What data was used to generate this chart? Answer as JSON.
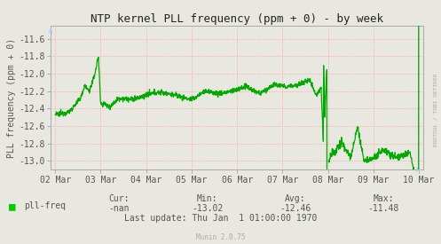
{
  "title": "NTP kernel PLL frequency (ppm + 0) - by week",
  "ylabel": "PLL frequency (ppm + 0)",
  "bg_color": "#e8e8e0",
  "plot_bg_color": "#e8e8e0",
  "line_color": "#00aa00",
  "title_color": "#222222",
  "axis_color": "#555555",
  "tick_color": "#555555",
  "grid_h_color": "#ff9999",
  "grid_v_color": "#ff9999",
  "ylim": [
    -13.1,
    -11.45
  ],
  "yticks": [
    -13.0,
    -12.8,
    -12.6,
    -12.4,
    -12.2,
    -12.0,
    -11.8,
    -11.6
  ],
  "x_tick_positions": [
    0,
    1,
    2,
    3,
    4,
    5,
    6,
    7,
    8
  ],
  "x_tick_labels": [
    "02 Mar",
    "03 Mar",
    "04 Mar",
    "05 Mar",
    "06 Mar",
    "07 Mar",
    "08 Mar",
    "09 Mar",
    "10 Mar"
  ],
  "legend_label": "pll-freq",
  "legend_color": "#00cc00",
  "stats_cur": "-nan",
  "stats_min": "-13.02",
  "stats_avg": "-12.46",
  "stats_max": "-11.48",
  "last_update": "Last update: Thu Jan  1 01:00:00 1970",
  "munin_version": "Munin 2.0.75",
  "rrdtool_label": "RRDTOOL / TOBI OETIKER",
  "font_color_light": "#aaaaaa",
  "arrow_color": "#aaccff"
}
